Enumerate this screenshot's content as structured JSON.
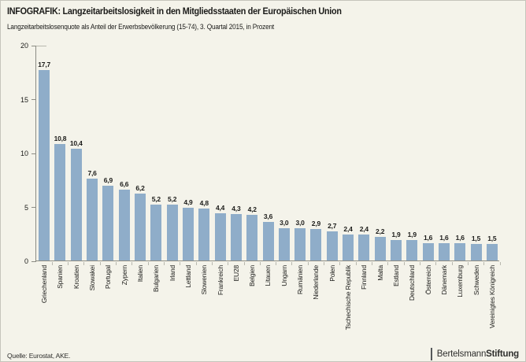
{
  "header": {
    "title": "INFOGRAFIK: Langzeitarbeitslosigkeit in den Mitgliedsstaaten der Europäischen Union",
    "subtitle": "Langzeitarbeitslosenquote als Anteil der Erwerbsbevölkerung (15-74), 3. Quartal 2015, in Prozent"
  },
  "chart_data": {
    "type": "bar",
    "title": "INFOGRAFIK: Langzeitarbeitslosigkeit in den Mitgliedsstaaten der Europäischen Union",
    "subtitle": "Langzeitarbeitslosenquote als Anteil der Erwerbsbevölkerung (15-74), 3. Quartal 2015, in Prozent",
    "categories": [
      "Griechenland",
      "Spanien",
      "Kroatien",
      "Slowakei",
      "Portugal",
      "Zypern",
      "Italien",
      "Bulgarien",
      "Irland",
      "Lettland",
      "Slowenien",
      "Frankreich",
      "EU28",
      "Belgien",
      "Litauen",
      "Ungarn",
      "Rumänien",
      "Niederlande",
      "Polen",
      "Tschechische Republik",
      "Finnland",
      "Malta",
      "Estland",
      "Deutschland",
      "Österreich",
      "Dänemark",
      "Luxemburg",
      "Schweden",
      "Vereinigtes Königreich"
    ],
    "values": [
      17.7,
      10.8,
      10.4,
      7.6,
      6.9,
      6.6,
      6.2,
      5.2,
      5.2,
      4.9,
      4.8,
      4.4,
      4.3,
      4.2,
      3.6,
      3.0,
      3.0,
      2.9,
      2.7,
      2.4,
      2.4,
      2.2,
      1.9,
      1.9,
      1.6,
      1.6,
      1.6,
      1.5,
      1.5
    ],
    "value_labels": [
      "17,7",
      "10,8",
      "10,4",
      "7,6",
      "6,9",
      "6,6",
      "6,2",
      "5,2",
      "5,2",
      "4,9",
      "4,8",
      "4,4",
      "4,3",
      "4,2",
      "3,6",
      "3,0",
      "3,0",
      "2,9",
      "2,7",
      "2,4",
      "2,4",
      "2,2",
      "1,9",
      "1,9",
      "1,6",
      "1,6",
      "1,6",
      "1,5",
      "1,5"
    ],
    "y_ticks": [
      0,
      5,
      10,
      15,
      20
    ],
    "ylim": [
      0,
      20
    ],
    "grid": false,
    "legend": false,
    "bar_color": "#8FADC9"
  },
  "footer": {
    "source": "Quelle: Eurostat, AKE.",
    "brand": {
      "regular": "Bertelsmann",
      "bold": "Stiftung"
    }
  },
  "colors": {
    "background": "#F4F3EA",
    "bar": "#8FADC9",
    "axis": "#8C8C84",
    "minor_tick": "#B8B8AE",
    "text": "#1B1B19"
  }
}
